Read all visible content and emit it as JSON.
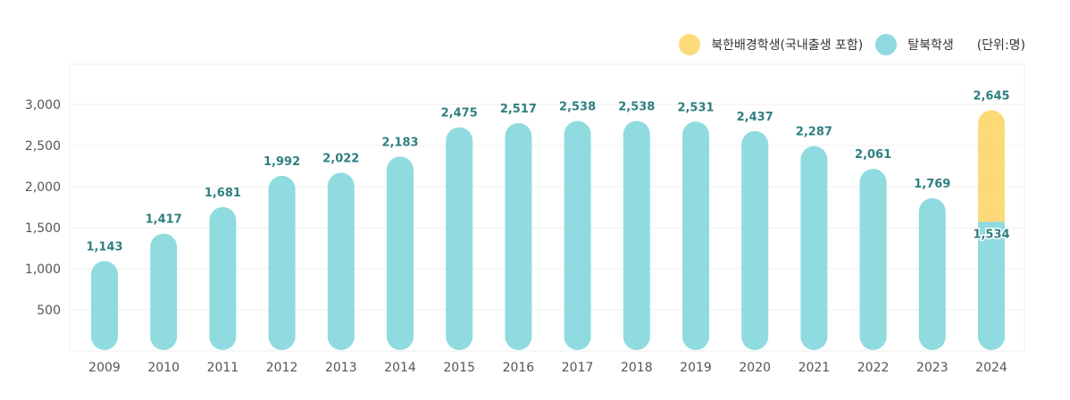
{
  "chart_data": {
    "type": "bar",
    "stacked": true,
    "unit_label": "(단위:명)",
    "categories": [
      "2009",
      "2010",
      "2011",
      "2012",
      "2013",
      "2014",
      "2015",
      "2016",
      "2017",
      "2018",
      "2019",
      "2020",
      "2021",
      "2022",
      "2023",
      "2024"
    ],
    "series": [
      {
        "name": "탈북학생",
        "color": "#8fdbe0",
        "values": [
          1143,
          1417,
          1681,
          1992,
          2022,
          2183,
          2475,
          2517,
          2538,
          2538,
          2531,
          2437,
          2287,
          2061,
          1769,
          1534
        ]
      },
      {
        "name": "북한배경학생(국내출생 포함)",
        "color": "#fedb7a",
        "values": [
          0,
          0,
          0,
          0,
          0,
          0,
          0,
          0,
          0,
          0,
          0,
          0,
          0,
          0,
          0,
          1111
        ]
      }
    ],
    "total_labels": [
      "1,143",
      "1,417",
      "1,681",
      "1,992",
      "2,022",
      "2,183",
      "2,475",
      "2,517",
      "2,538",
      "2,538",
      "2,531",
      "2,437",
      "2,287",
      "2,061",
      "1,769",
      "2,645"
    ],
    "segment_labels": {
      "2024": "1,534"
    },
    "yticks": [
      "500",
      "1,000",
      "1,500",
      "2,000",
      "2,500",
      "3,000"
    ],
    "ytick_values": [
      500,
      1000,
      1500,
      2000,
      2500,
      3000
    ],
    "ylim": [
      0,
      3500
    ],
    "grid": true,
    "legend": "top-right",
    "label_color": "#2f7f80"
  }
}
